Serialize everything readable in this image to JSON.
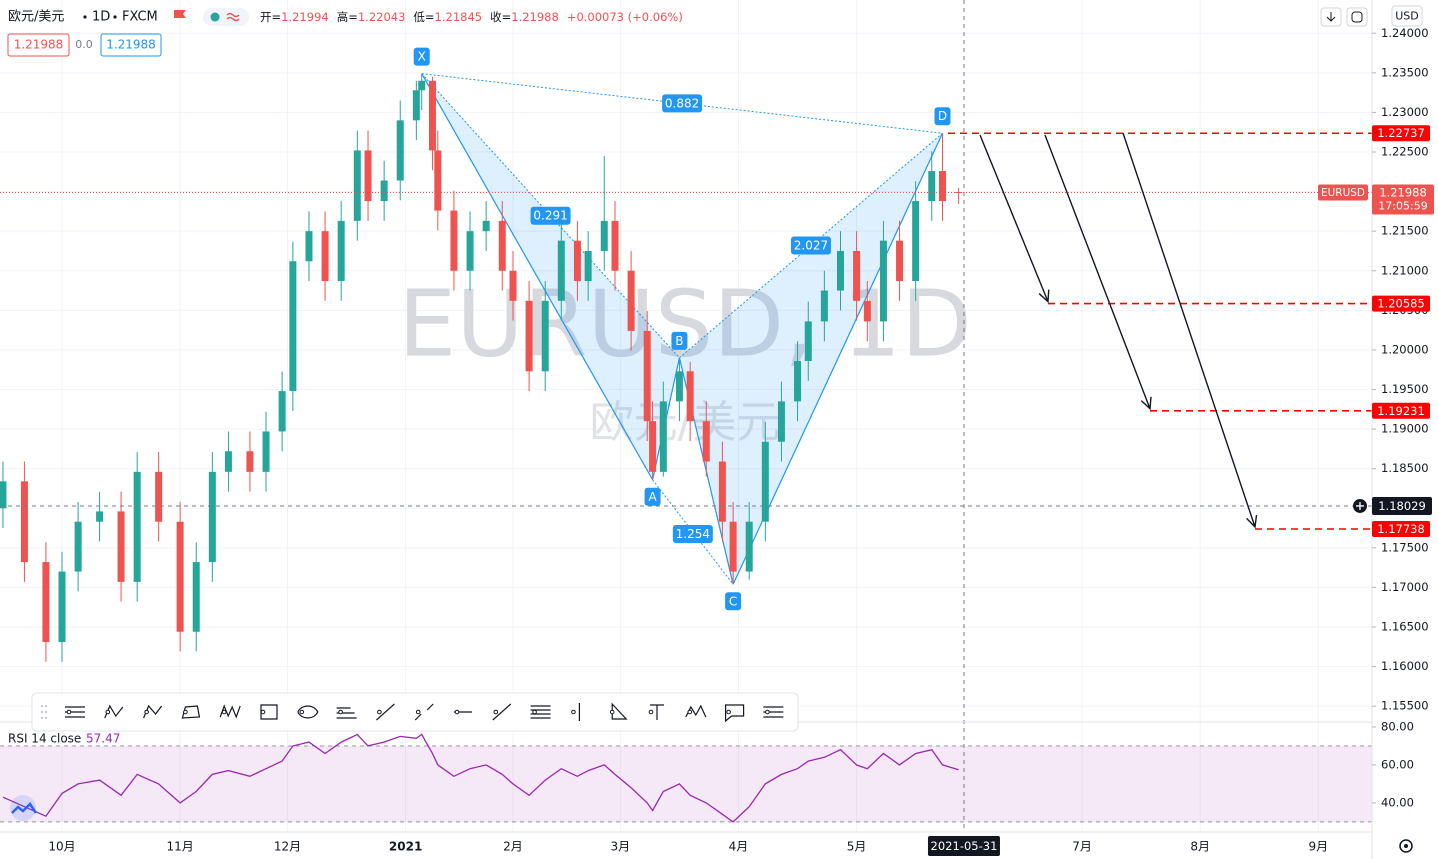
{
  "header": {
    "symbol": "欧元/美元",
    "interval": "1D",
    "exchange": "FXCM",
    "ohlc": [
      {
        "label": "开=",
        "value": 1.21994
      },
      {
        "label": "高=",
        "value": 1.22043
      },
      {
        "label": "低=",
        "value": 1.21845
      },
      {
        "label": "收=",
        "value": 1.21988
      }
    ],
    "change": "+0.00073 (+0.06%)",
    "bid": 1.21988,
    "spread": "0.0",
    "ask": 1.21988,
    "currency": "USD",
    "watermark": "EURUSD, 1D",
    "watermark_sub": "欧元/美元"
  },
  "chart_data": [
    {
      "type": "candlestick",
      "up_color": "#26a69a",
      "down_color": "#ef5350",
      "x": [
        -11,
        -7,
        -3,
        0,
        3,
        7,
        11,
        14,
        18,
        22,
        25,
        28,
        31,
        35,
        38,
        41,
        43,
        46,
        49,
        52,
        55,
        57,
        60,
        63,
        66,
        67,
        69,
        70,
        73,
        76,
        79,
        82,
        84,
        87,
        90,
        93,
        96,
        98,
        101,
        103,
        106,
        109,
        110,
        112,
        115,
        117,
        120,
        123,
        125,
        128,
        131,
        134,
        137,
        139,
        142,
        145,
        148,
        150,
        153,
        156,
        159,
        162,
        164,
        167
      ],
      "open": [
        1.18,
        1.1834,
        1.1732,
        1.1631,
        1.172,
        1.1783,
        1.1796,
        1.1707,
        1.1846,
        1.1783,
        1.1644,
        1.1732,
        1.1846,
        1.1872,
        1.1846,
        1.1897,
        1.1948,
        1.2112,
        1.215,
        1.2087,
        1.2163,
        1.2252,
        1.2188,
        1.2214,
        1.229,
        1.2328,
        1.234,
        1.2252,
        1.2176,
        1.21,
        1.215,
        1.2163,
        1.21,
        1.2062,
        1.1973,
        1.2062,
        1.2138,
        1.2087,
        1.2125,
        1.2163,
        1.21,
        1.2024,
        1.191,
        1.1846,
        1.1935,
        1.1973,
        1.191,
        1.1859,
        1.1783,
        1.172,
        1.1783,
        1.1884,
        1.1935,
        1.1986,
        1.2036,
        1.2075,
        1.2125,
        1.2062,
        1.2036,
        1.2138,
        1.2087,
        1.2188,
        1.2226,
        1.21994
      ],
      "high": [
        1.1859,
        1.1859,
        1.1757,
        1.1745,
        1.1808,
        1.1821,
        1.1821,
        1.1871,
        1.1871,
        1.1808,
        1.1757,
        1.1871,
        1.1897,
        1.1897,
        1.1922,
        1.1973,
        1.2137,
        1.2175,
        1.2175,
        1.2188,
        1.2277,
        1.2277,
        1.2239,
        1.2315,
        1.234,
        1.2349,
        1.2345,
        1.2277,
        1.2201,
        1.2175,
        1.2188,
        1.2188,
        1.2125,
        1.2087,
        1.2087,
        1.2163,
        1.2163,
        1.215,
        1.2245,
        1.2188,
        1.2125,
        1.2049,
        1.1935,
        1.196,
        1.199,
        1.1985,
        1.1935,
        1.1884,
        1.1808,
        1.1808,
        1.1909,
        1.196,
        1.2011,
        1.2061,
        1.21,
        1.215,
        1.215,
        1.2087,
        1.2163,
        1.2163,
        1.2213,
        1.2251,
        1.2274,
        1.22043
      ],
      "low": [
        1.1775,
        1.1707,
        1.1606,
        1.1606,
        1.1695,
        1.1758,
        1.1682,
        1.1682,
        1.1758,
        1.1619,
        1.1619,
        1.1707,
        1.1821,
        1.1821,
        1.1821,
        1.1872,
        1.1923,
        1.2087,
        1.2062,
        1.2062,
        1.2138,
        1.2163,
        1.2163,
        1.2189,
        1.2265,
        1.2303,
        1.2227,
        1.2151,
        1.2075,
        1.2075,
        1.2125,
        1.2075,
        1.2037,
        1.1948,
        1.1948,
        1.2037,
        1.2062,
        1.2062,
        1.21,
        1.2075,
        1.1999,
        1.1885,
        1.1836,
        1.184,
        1.191,
        1.1885,
        1.184,
        1.1758,
        1.1704,
        1.171,
        1.1758,
        1.1859,
        1.191,
        1.1961,
        1.2011,
        1.205,
        1.2037,
        1.2011,
        1.2011,
        1.2062,
        1.2062,
        1.2163,
        1.2163,
        1.21845
      ],
      "close": [
        1.1834,
        1.1732,
        1.1631,
        1.172,
        1.1783,
        1.1796,
        1.1707,
        1.1846,
        1.1783,
        1.1644,
        1.1732,
        1.1846,
        1.1872,
        1.1846,
        1.1897,
        1.1948,
        1.2112,
        1.215,
        1.2087,
        1.2163,
        1.2252,
        1.2188,
        1.2214,
        1.229,
        1.2328,
        1.234,
        1.2252,
        1.2176,
        1.21,
        1.215,
        1.2163,
        1.21,
        1.2062,
        1.1973,
        1.2062,
        1.2138,
        1.2087,
        1.2125,
        1.2163,
        1.21,
        1.2024,
        1.191,
        1.1846,
        1.1935,
        1.1973,
        1.191,
        1.1859,
        1.1783,
        1.172,
        1.1783,
        1.1884,
        1.1935,
        1.1986,
        1.2036,
        1.2075,
        1.2125,
        1.2062,
        1.2036,
        1.2138,
        1.2087,
        1.2188,
        1.2226,
        1.2188,
        1.21988
      ],
      "xlim": [
        -11.55,
        244
      ],
      "ylim": [
        1.153,
        1.2442
      ],
      "xticks": [
        {
          "value": 0,
          "label": "10月"
        },
        {
          "value": 22,
          "label": "11月"
        },
        {
          "value": 42,
          "label": "12月"
        },
        {
          "value": 64,
          "label": "2021"
        },
        {
          "value": 84,
          "label": "2月"
        },
        {
          "value": 104,
          "label": "3月"
        },
        {
          "value": 126,
          "label": "4月"
        },
        {
          "value": 148,
          "label": "5月"
        },
        {
          "value": 190,
          "label": "7月"
        },
        {
          "value": 212,
          "label": "8月"
        },
        {
          "value": 234,
          "label": "9月"
        }
      ],
      "yticks": [
        {
          "value": 1.24,
          "label": "1.24000"
        },
        {
          "value": 1.235,
          "label": "1.23500"
        },
        {
          "value": 1.23,
          "label": "1.23000"
        },
        {
          "value": 1.225,
          "label": "1.22500"
        },
        {
          "value": 1.22,
          "label": "1.22000"
        },
        {
          "value": 1.215,
          "label": "1.21500"
        },
        {
          "value": 1.21,
          "label": "1.21000"
        },
        {
          "value": 1.205,
          "label": "1.20500"
        },
        {
          "value": 1.2,
          "label": "1.20000"
        },
        {
          "value": 1.195,
          "label": "1.19500"
        },
        {
          "value": 1.19,
          "label": "1.19000"
        },
        {
          "value": 1.185,
          "label": "1.18500"
        },
        {
          "value": 1.18,
          "label": "1.18000"
        },
        {
          "value": 1.175,
          "label": "1.17500"
        },
        {
          "value": 1.17,
          "label": "1.17000"
        },
        {
          "value": 1.165,
          "label": "1.16500"
        },
        {
          "value": 1.16,
          "label": "1.16000"
        },
        {
          "value": 1.155,
          "label": "1.15500"
        }
      ],
      "grid": true,
      "pattern": {
        "color": "#2196f3",
        "points": [
          {
            "label": "X",
            "x": 67,
            "y": 1.2349
          },
          {
            "label": "A",
            "x": 110,
            "y": 1.1836
          },
          {
            "label": "B",
            "x": 115,
            "y": 1.199
          },
          {
            "label": "C",
            "x": 125,
            "y": 1.1704
          },
          {
            "label": "D",
            "x": 164,
            "y": 1.22737
          }
        ],
        "ratios": [
          0.882,
          0.291,
          1.254,
          2.027
        ]
      },
      "levels": [
        1.22737,
        1.20585,
        1.19231,
        1.17738
      ],
      "level_color": "#ff0000",
      "last_price": 1.21988,
      "last_label": "EURUSD",
      "countdown": "17:05:59",
      "crosshair": {
        "x": 168,
        "price": 1.18029,
        "date": "2021-05-31"
      }
    },
    {
      "type": "line",
      "title": "RSI 14 close",
      "color": "#9c27b0",
      "x": [
        -11,
        -7,
        -3,
        0,
        3,
        7,
        11,
        14,
        18,
        22,
        25,
        28,
        31,
        35,
        38,
        41,
        43,
        46,
        49,
        52,
        55,
        57,
        60,
        63,
        66,
        67,
        69,
        70,
        73,
        76,
        79,
        82,
        84,
        87,
        90,
        93,
        96,
        98,
        101,
        103,
        106,
        109,
        110,
        112,
        115,
        117,
        120,
        123,
        125,
        128,
        131,
        134,
        137,
        139,
        142,
        145,
        148,
        150,
        153,
        156,
        159,
        162,
        164,
        167
      ],
      "values": [
        43,
        38,
        33,
        45,
        50,
        52,
        44,
        55,
        50,
        40,
        46,
        55,
        57,
        54,
        58,
        62,
        70,
        72,
        66,
        72,
        76,
        70,
        72,
        75,
        74,
        76,
        66,
        60,
        54,
        58,
        60,
        55,
        50,
        44,
        52,
        58,
        54,
        57,
        60,
        55,
        48,
        40,
        36,
        46,
        50,
        44,
        40,
        34,
        30,
        38,
        50,
        55,
        58,
        62,
        64,
        68,
        60,
        58,
        66,
        60,
        66,
        68,
        60,
        57.47
      ],
      "ylim": [
        24.7,
        82.6
      ],
      "band": [
        30,
        70
      ],
      "yticks": [
        {
          "value": 80,
          "label": "80.00"
        },
        {
          "value": 60,
          "label": "60.00"
        },
        {
          "value": 40,
          "label": "40.00"
        }
      ]
    }
  ]
}
